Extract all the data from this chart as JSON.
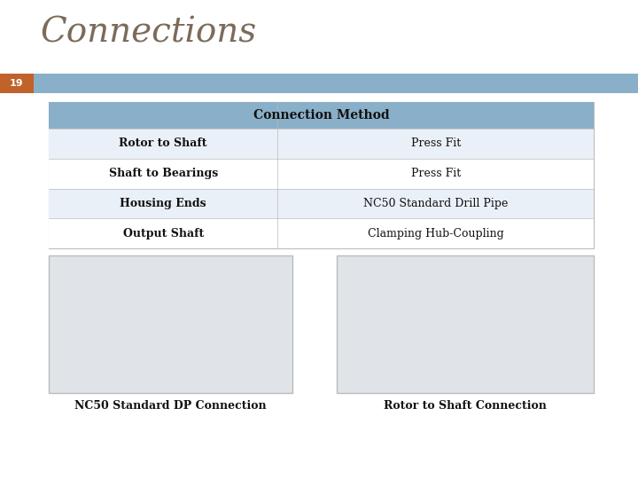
{
  "title": "Connections",
  "slide_number": "19",
  "slide_number_bg": "#C0622A",
  "title_font_size": 28,
  "title_color": "#7B6B5A",
  "header_bar_color": "#8AAFC8",
  "table_header_text": "Connection Method",
  "table_header_bg": "#8AAFC8",
  "table_header_text_color": "#111111",
  "row_odd_bg": "#EAF0F7",
  "row_even_bg": "#FFFFFF",
  "table_border_color": "#BBBBBB",
  "rows": [
    [
      "Rotor to Shaft",
      "Press Fit"
    ],
    [
      "Shaft to Bearings",
      "Press Fit"
    ],
    [
      "Housing Ends",
      "NC50 Standard Drill Pipe"
    ],
    [
      "Output Shaft",
      "Clamping Hub-Coupling"
    ]
  ],
  "image_caption_left": "NC50 Standard DP Connection",
  "image_caption_right": "Rotor to Shaft Connection",
  "bg_color": "#FFFFFF",
  "col_split": 0.42
}
